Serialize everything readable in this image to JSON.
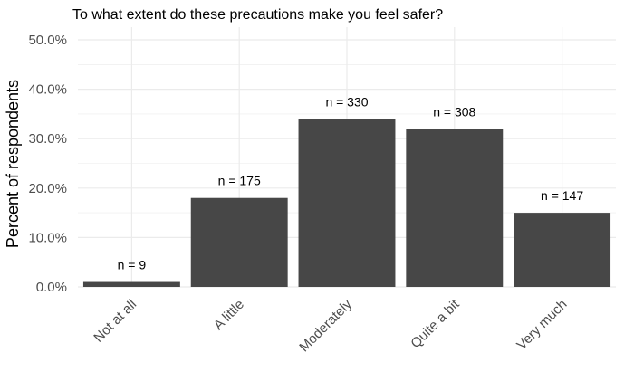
{
  "chart_data": {
    "type": "bar",
    "title": "To what extent do these precautions make you feel safer?",
    "xlabel": "",
    "ylabel": "Percent of respondents",
    "categories": [
      "Not at all",
      "A little",
      "Moderately",
      "Quite a bit",
      "Very much"
    ],
    "values": [
      1.0,
      18.0,
      34.0,
      32.0,
      15.0
    ],
    "data_labels": [
      "n = 9",
      "n = 175",
      "n = 330",
      "n = 308",
      "n = 147"
    ],
    "ylim": [
      0,
      50
    ],
    "yticks": [
      0,
      10,
      20,
      30,
      40,
      50
    ],
    "ytick_labels": [
      "0.0%",
      "10.0%",
      "20.0%",
      "30.0%",
      "40.0%",
      "50.0%"
    ],
    "grid": true,
    "bar_color": "#474747",
    "grid_color": "#ebebeb"
  }
}
